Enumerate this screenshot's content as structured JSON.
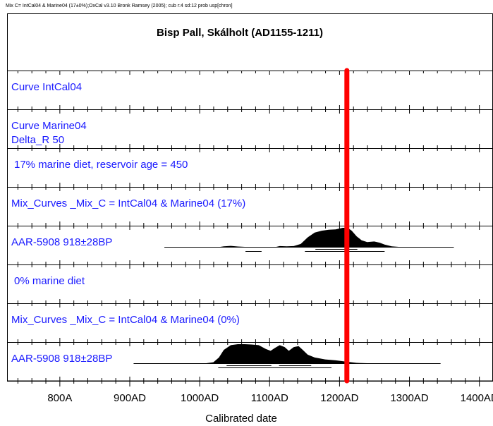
{
  "header": "Mix  C= IntCal04 & Marine04 (17±0%);OxCal v3.10 Bronk Ramsey (2005); cub r:4 sd:12 prob usp[chron]",
  "chart_data": {
    "type": "multiplot",
    "title": "Bisp Pall, Skálholt (AD1155-1211)",
    "x_label": "Calibrated date",
    "xlim": [
      725,
      1420
    ],
    "xticks": [
      {
        "value": 800,
        "label": "800A"
      },
      {
        "value": 900,
        "label": "900AD"
      },
      {
        "value": 1000,
        "label": "1000AD"
      },
      {
        "value": 1100,
        "label": "1100AD"
      },
      {
        "value": 1200,
        "label": "1200AD"
      },
      {
        "value": 1300,
        "label": "1300AD"
      },
      {
        "value": 1400,
        "label": "1400AD"
      }
    ],
    "minor_xticks": [
      740,
      760,
      780,
      820,
      840,
      860,
      880,
      920,
      940,
      960,
      980,
      1020,
      1040,
      1060,
      1080,
      1120,
      1140,
      1160,
      1180,
      1220,
      1240,
      1260,
      1280,
      1320,
      1340,
      1360,
      1380
    ],
    "label_color": "#1a1aff",
    "fill_color": "#000000",
    "marker": {
      "value": 1211,
      "color": "#ff0000"
    },
    "rows": [
      {
        "label": [
          "Curve IntCal04"
        ]
      },
      {
        "label": [
          "Curve Marine04",
          "Delta_R 50"
        ]
      },
      {
        "label": [
          " 17% marine diet, reservoir age = 450"
        ],
        "kind": "comment"
      },
      {
        "label": [
          "Mix_Curves _Mix_C  = IntCal04 & Marine04 (17%)"
        ]
      },
      {
        "label": [
          "AAR-5908  918±28BP"
        ],
        "distribution": {
          "x": [
            950,
            1030,
            1035,
            1045,
            1055,
            1065,
            1110,
            1115,
            1125,
            1135,
            1145,
            1155,
            1165,
            1175,
            1185,
            1195,
            1205,
            1212,
            1218,
            1225,
            1232,
            1240,
            1250,
            1258,
            1265,
            1275,
            1285,
            1364
          ],
          "values": [
            0,
            0,
            0.03,
            0.05,
            0.02,
            0,
            0,
            0.04,
            0.03,
            0.04,
            0.15,
            0.5,
            0.75,
            0.85,
            0.9,
            0.92,
            1,
            1,
            0.85,
            0.55,
            0.35,
            0.25,
            0.28,
            0.22,
            0.12,
            0.03,
            0,
            0
          ],
          "ranges_68": [
            [
              1166,
              1226
            ]
          ],
          "ranges_95": [
            [
              1066,
              1089
            ],
            [
              1151,
              1265
            ]
          ]
        }
      },
      {
        "label": [
          " 0% marine diet"
        ],
        "kind": "comment"
      },
      {
        "label": [
          "Mix_Curves _Mix_C  = IntCal04 & Marine04 (0%)"
        ]
      },
      {
        "label": [
          "AAR-5908  918±28BP"
        ],
        "distribution": {
          "x": [
            906,
            1010,
            1020,
            1028,
            1035,
            1045,
            1055,
            1065,
            1075,
            1085,
            1095,
            1102,
            1108,
            1115,
            1122,
            1128,
            1135,
            1142,
            1148,
            1155,
            1165,
            1180,
            1195,
            1210,
            1225,
            1240,
            1345
          ],
          "values": [
            0,
            0,
            0.05,
            0.3,
            0.7,
            0.95,
            1,
            1,
            0.98,
            0.95,
            0.75,
            0.65,
            0.8,
            0.95,
            0.85,
            0.65,
            0.85,
            0.9,
            0.7,
            0.45,
            0.3,
            0.2,
            0.15,
            0.08,
            0.02,
            0,
            0
          ],
          "ranges_68": [
            [
              1039,
              1103
            ],
            [
              1114,
              1160
            ]
          ],
          "ranges_95": [
            [
              1027,
              1189
            ]
          ]
        }
      }
    ]
  }
}
